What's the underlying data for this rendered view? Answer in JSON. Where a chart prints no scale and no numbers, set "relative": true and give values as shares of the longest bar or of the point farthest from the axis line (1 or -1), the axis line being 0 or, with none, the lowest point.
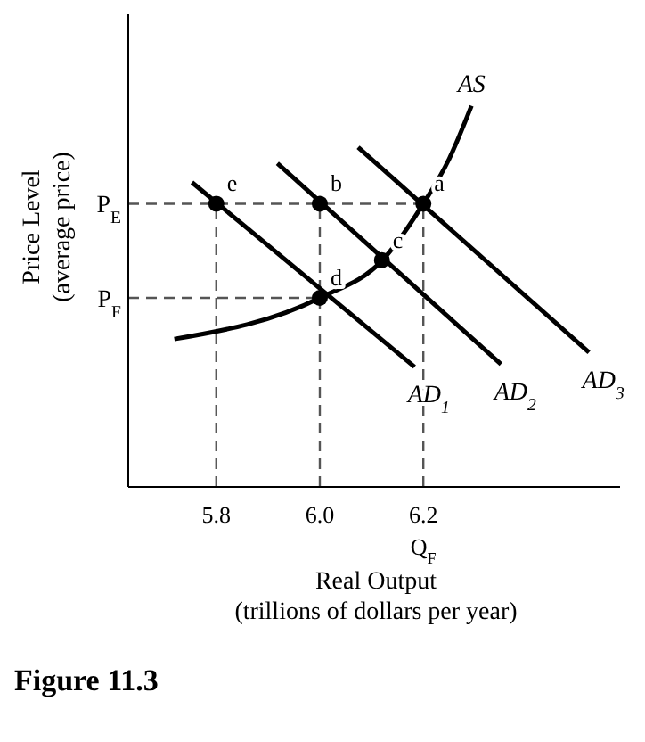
{
  "chart_data": {
    "type": "line",
    "title": "Figure 11.3",
    "xlabel": "Real Output\n(trillions of dollars per year)",
    "ylabel": "Price Level\n(average price)",
    "relative": true,
    "xlim": [
      5.63,
      6.58
    ],
    "xticks": [
      5.8,
      {
        "value": 6,
        "label": "6.0"
      },
      {
        "value": 6.2,
        "label": "6.2\nQ$_{F}$"
      }
    ],
    "grid": false,
    "legend": false,
    "line_style": "solid",
    "marker": "none",
    "series": [
      {
        "name": "AD$_{1}$",
        "color": "#000000",
        "x": [
          5.753,
          6.183
        ],
        "values": [
          0.799,
          0.315
        ]
      },
      {
        "name": "AD$_{2}$",
        "color": "#000000",
        "x": [
          5.918,
          6.35
        ],
        "values": [
          0.849,
          0.322
        ]
      },
      {
        "name": "AD$_{3}$",
        "color": "#000000",
        "x": [
          6.074,
          6.52
        ],
        "values": [
          0.891,
          0.353
        ]
      },
      {
        "name": "AS",
        "color": "#000000",
        "x": [
          5.719,
          6.0,
          6.121,
          6.2,
          6.25,
          6.293
        ],
        "values": [
          0.388,
          0.496,
          0.595,
          0.743,
          0.861,
          1
        ]
      },
      {
        "type": "scatter",
        "color": "#000000",
        "marker": "circle",
        "x": [
          5.8,
          6.0,
          6.2,
          6.12,
          6.0
        ],
        "values": [
          0.743,
          0.743,
          0.743,
          0.595,
          0.496
        ]
      }
    ],
    "ref_lines": [
      {
        "axis": "y",
        "value": 0.743,
        "label": "P$_{E}$",
        "line_style": "dashed",
        "color": "#555555"
      },
      {
        "axis": "y",
        "value": 0.496,
        "label": "P$_{F}$",
        "line_style": "dashed",
        "color": "#555555"
      },
      {
        "axis": "x",
        "value": 5.8,
        "line_style": "dashed",
        "color": "#555555"
      },
      {
        "axis": "x",
        "value": 6.0,
        "line_style": "dashed",
        "color": "#555555"
      },
      {
        "axis": "x",
        "value": 6.2,
        "line_style": "dashed",
        "color": "#555555"
      }
    ],
    "annotations": [
      {
        "text": "e",
        "x": 5.8,
        "y": 0.743
      },
      {
        "text": "b",
        "x": 6.0,
        "y": 0.743
      },
      {
        "text": "a",
        "x": 6.2,
        "y": 0.743
      },
      {
        "text": "c",
        "x": 6.12,
        "y": 0.595
      },
      {
        "text": "d",
        "x": 6.0,
        "y": 0.496
      }
    ]
  }
}
